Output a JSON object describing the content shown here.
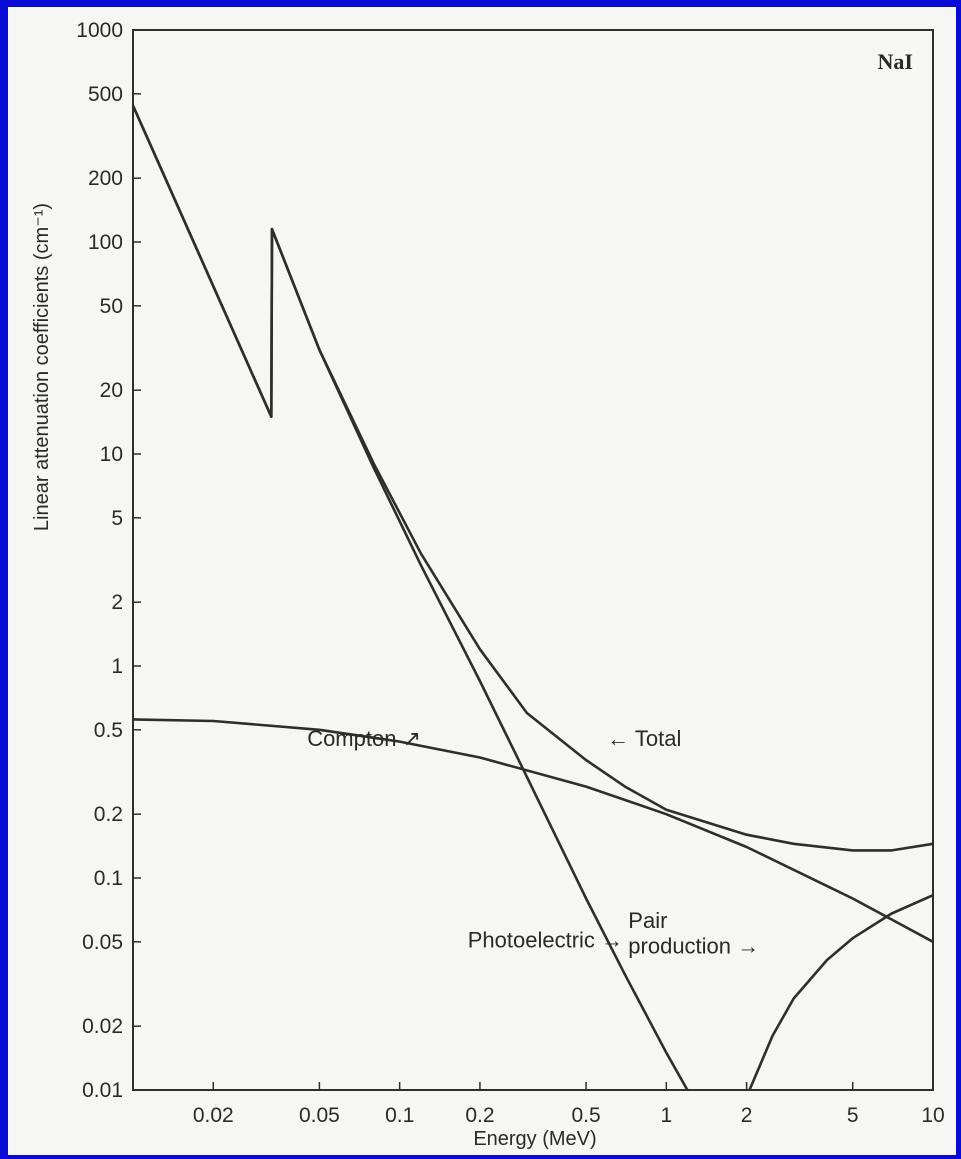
{
  "page": {
    "background": "#0a0ad6",
    "panel": "#f6f6f4"
  },
  "chart_data": {
    "type": "line",
    "title": "",
    "material_label": "NaI",
    "xlabel": "Energy (MeV)",
    "ylabel": "Linear attenuation coefficients (cm⁻¹)",
    "xscale": "log",
    "yscale": "log",
    "xlim": [
      0.01,
      10
    ],
    "ylim": [
      0.01,
      1000
    ],
    "grid": false,
    "x_ticks": [
      {
        "value": 0.02,
        "label": "0.02"
      },
      {
        "value": 0.05,
        "label": "0.05"
      },
      {
        "value": 0.1,
        "label": "0.1"
      },
      {
        "value": 0.2,
        "label": "0.2"
      },
      {
        "value": 0.5,
        "label": "0.5"
      },
      {
        "value": 1,
        "label": "1"
      },
      {
        "value": 2,
        "label": "2"
      },
      {
        "value": 5,
        "label": "5"
      },
      {
        "value": 10,
        "label": "10"
      }
    ],
    "y_ticks": [
      {
        "value": 1000,
        "label": "1000"
      },
      {
        "value": 500,
        "label": "500"
      },
      {
        "value": 200,
        "label": "200"
      },
      {
        "value": 100,
        "label": "100"
      },
      {
        "value": 50,
        "label": "50"
      },
      {
        "value": 20,
        "label": "20"
      },
      {
        "value": 10,
        "label": "10"
      },
      {
        "value": 5,
        "label": "5"
      },
      {
        "value": 2,
        "label": "2"
      },
      {
        "value": 1,
        "label": "1"
      },
      {
        "value": 0.5,
        "label": "0.5"
      },
      {
        "value": 0.2,
        "label": "0.2"
      },
      {
        "value": 0.1,
        "label": "0.1"
      },
      {
        "value": 0.05,
        "label": "0.05"
      },
      {
        "value": 0.02,
        "label": "0.02"
      },
      {
        "value": 0.01,
        "label": "0.01"
      }
    ],
    "series": [
      {
        "name": "Total",
        "x": [
          0.01,
          0.033,
          0.0332,
          0.05,
          0.08,
          0.12,
          0.2,
          0.3,
          0.5,
          0.7,
          1,
          2,
          3,
          5,
          7,
          10
        ],
        "y": [
          440,
          15,
          115,
          31,
          9,
          3.4,
          1.2,
          0.6,
          0.36,
          0.27,
          0.21,
          0.16,
          0.145,
          0.135,
          0.135,
          0.145
        ]
      },
      {
        "name": "Photoelectric",
        "x": [
          0.01,
          0.033,
          0.0332,
          0.05,
          0.08,
          0.12,
          0.2,
          0.3,
          0.5,
          0.7,
          1,
          1.2
        ],
        "y": [
          440,
          15,
          115,
          31,
          8.6,
          3,
          0.85,
          0.3,
          0.08,
          0.035,
          0.015,
          0.01
        ]
      },
      {
        "name": "Compton",
        "x": [
          0.01,
          0.02,
          0.05,
          0.1,
          0.2,
          0.5,
          1,
          2,
          5,
          10
        ],
        "y": [
          0.56,
          0.55,
          0.5,
          0.44,
          0.37,
          0.27,
          0.2,
          0.14,
          0.08,
          0.05
        ]
      },
      {
        "name": "Pair production",
        "x": [
          2.05,
          2.5,
          3,
          4,
          5,
          7,
          10
        ],
        "y": [
          0.01,
          0.018,
          0.027,
          0.041,
          0.052,
          0.068,
          0.083
        ]
      }
    ],
    "annotations": [
      {
        "text": "Compton ↗",
        "x": 0.045,
        "y": 0.42
      },
      {
        "text": "← Total",
        "x": 0.6,
        "y": 0.42
      },
      {
        "text": "Photoelectric →",
        "x": 0.18,
        "y": 0.047
      },
      {
        "text": "Pair",
        "x": 0.72,
        "y": 0.058
      },
      {
        "text": "production →",
        "x": 0.72,
        "y": 0.044
      }
    ]
  }
}
